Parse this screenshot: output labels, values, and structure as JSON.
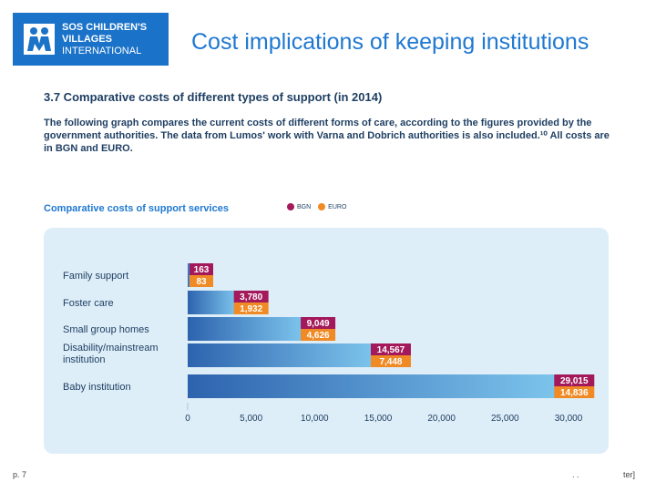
{
  "colors": {
    "brand": "#1a73c8",
    "bgn": "#a3195b",
    "euro": "#f08a24",
    "title": "#1f78d1",
    "text": "#1f3f63",
    "panel": "#deeef8"
  },
  "logo": {
    "line1": "SOS CHILDREN'S",
    "line2": "VILLAGES",
    "line3": "INTERNATIONAL",
    "icon": "sos-children-icon"
  },
  "slide_title": "Cost implications of keeping institutions",
  "section": {
    "title": "3.7  Comparative costs of different types of support (in 2014)",
    "description": "The following graph compares the current costs of different forms of care, according to the figures provided by the government authorities.  The data from Lumos' work with Varna and Dobrich authorities is also included.¹⁰  All costs are in BGN and EURO."
  },
  "chart_title": "Comparative costs of support services",
  "legend": {
    "bgn": "BGN",
    "euro": "EURO"
  },
  "chart_data": {
    "type": "bar",
    "orientation": "horizontal",
    "title": "Comparative costs of support services",
    "categories": [
      "Family support",
      "Foster care",
      "Small group homes",
      "Disability/mainstream institution",
      "Baby institution"
    ],
    "category_lines": [
      [
        "Family support"
      ],
      [
        "Foster care"
      ],
      [
        "Small group homes"
      ],
      [
        "Disability/mainstream",
        "institution"
      ],
      [
        "Baby institution"
      ]
    ],
    "series": [
      {
        "name": "BGN",
        "values": [
          163,
          3780,
          9049,
          14567,
          29015
        ],
        "labels": [
          "163",
          "3,780",
          "9,049",
          "14,567",
          "29,015"
        ]
      },
      {
        "name": "EURO",
        "values": [
          83,
          1932,
          4626,
          7448,
          14836
        ],
        "labels": [
          "83",
          "1,932",
          "4,626",
          "7,448",
          "14,836"
        ]
      }
    ],
    "xlim": [
      0,
      30000
    ],
    "xticks": [
      0,
      5000,
      10000,
      15000,
      20000,
      25000,
      30000
    ],
    "xtick_labels": [
      "0",
      "5,000",
      "10,000",
      "15,000",
      "20,000",
      "25,000",
      "30,000"
    ],
    "xlabel": "",
    "ylabel": "",
    "legend": "top"
  },
  "footer": {
    "page": "p. 7",
    "mid": ". .",
    "right": "ter]"
  }
}
